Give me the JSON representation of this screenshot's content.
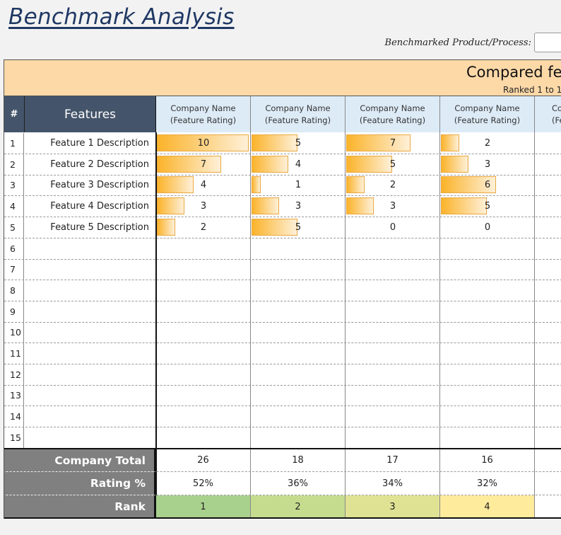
{
  "title": "Benchmark Analysis",
  "benchmark_label": "Benchmarked Product/Process:",
  "benchmark_value": "",
  "banner": {
    "title": "Compared fea",
    "subtitle": "Ranked 1 to 1"
  },
  "header": {
    "num": "#",
    "features": "Features",
    "company_line1": "Company Name",
    "company_line2": "(Feature Rating)",
    "company_partial_line1": "Co",
    "company_partial_line2": "(Fe"
  },
  "max_rating": 10,
  "rows": [
    {
      "num": "1",
      "feature": "Feature 1 Description",
      "ratings": [
        10,
        5,
        7,
        2
      ]
    },
    {
      "num": "2",
      "feature": "Feature 2 Description",
      "ratings": [
        7,
        4,
        5,
        3
      ]
    },
    {
      "num": "3",
      "feature": "Feature 3 Description",
      "ratings": [
        4,
        1,
        2,
        6
      ]
    },
    {
      "num": "4",
      "feature": "Feature 4 Description",
      "ratings": [
        3,
        3,
        3,
        5
      ]
    },
    {
      "num": "5",
      "feature": "Feature 5 Description",
      "ratings": [
        2,
        5,
        0,
        0
      ]
    },
    {
      "num": "6",
      "feature": "",
      "ratings": []
    },
    {
      "num": "7",
      "feature": "",
      "ratings": []
    },
    {
      "num": "8",
      "feature": "",
      "ratings": []
    },
    {
      "num": "9",
      "feature": "",
      "ratings": []
    },
    {
      "num": "10",
      "feature": "",
      "ratings": []
    },
    {
      "num": "11",
      "feature": "",
      "ratings": []
    },
    {
      "num": "12",
      "feature": "",
      "ratings": []
    },
    {
      "num": "13",
      "feature": "",
      "ratings": []
    },
    {
      "num": "14",
      "feature": "",
      "ratings": []
    },
    {
      "num": "15",
      "feature": "",
      "ratings": []
    }
  ],
  "footer": {
    "total_label": "Company Total",
    "totals": [
      "26",
      "18",
      "17",
      "16"
    ],
    "rating_label": "Rating %",
    "ratings": [
      "52%",
      "36%",
      "34%",
      "32%"
    ],
    "rank_label": "Rank",
    "ranks": [
      "1",
      "2",
      "3",
      "4"
    ],
    "rank_colors": [
      "#a9d18e",
      "#c5dc8f",
      "#e0e293",
      "#ffeb9c"
    ]
  }
}
